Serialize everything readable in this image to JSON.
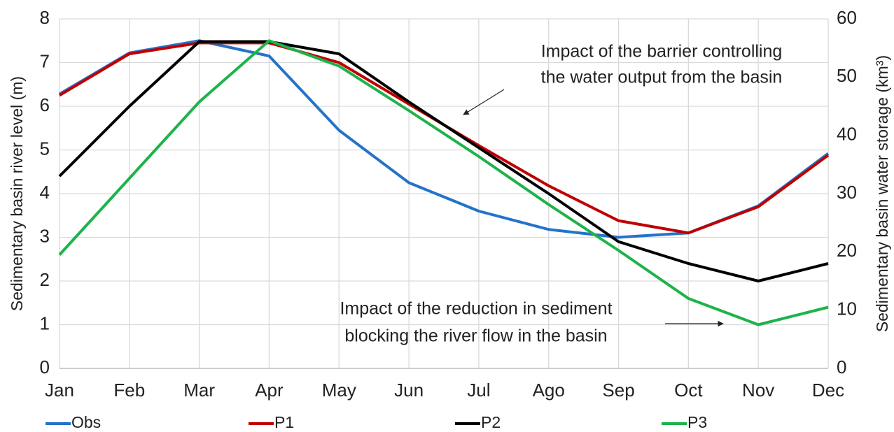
{
  "chart_data": {
    "type": "line",
    "y_label": "Sedimentary basin river level (m)",
    "y2_label": "Sedimentary basin water storage (km³)",
    "categories": [
      "Jan",
      "Feb",
      "Mar",
      "Apr",
      "May",
      "Jun",
      "Jul",
      "Ago",
      "Sep",
      "Oct",
      "Nov",
      "Dec"
    ],
    "series": [
      {
        "name": "Obs",
        "color": "#2473c9",
        "values": [
          6.28,
          7.22,
          7.5,
          7.15,
          5.45,
          4.25,
          3.6,
          3.18,
          3.0,
          3.1,
          3.72,
          4.92
        ]
      },
      {
        "name": "P1",
        "color": "#c00000",
        "values": [
          6.25,
          7.2,
          7.45,
          7.45,
          7.0,
          6.05,
          5.1,
          4.18,
          3.38,
          3.1,
          3.7,
          4.88
        ]
      },
      {
        "name": "P2",
        "color": "#000000",
        "values": [
          4.4,
          6.0,
          7.48,
          7.48,
          7.2,
          6.1,
          5.05,
          4.0,
          2.9,
          2.4,
          2.0,
          2.4
        ]
      },
      {
        "name": "P3",
        "color": "#1db34a",
        "values": [
          2.6,
          4.35,
          6.1,
          7.5,
          6.92,
          5.9,
          4.85,
          3.75,
          2.7,
          1.6,
          1.0,
          1.4
        ]
      }
    ],
    "ylim": [
      0,
      8
    ],
    "yticks": [
      0,
      1,
      2,
      3,
      4,
      5,
      6,
      7,
      8
    ],
    "y2lim": [
      0,
      60
    ],
    "y2ticks": [
      0,
      10,
      20,
      30,
      40,
      50,
      60
    ],
    "grid": true,
    "legend": "bottom",
    "annotations": [
      {
        "lines": [
          "Impact of the barrier controlling",
          "the water output from the basin"
        ]
      },
      {
        "lines": [
          "Impact of the reduction in sediment",
          "blocking the river flow in the basin"
        ]
      }
    ]
  }
}
